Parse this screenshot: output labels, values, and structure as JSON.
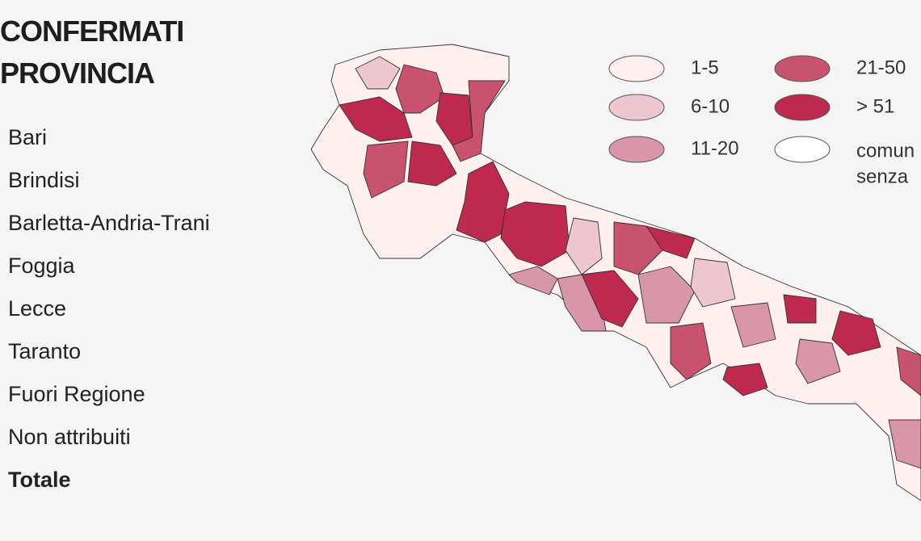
{
  "header": {
    "title_lines": [
      "CONFERMATI",
      "PROVINCIA"
    ]
  },
  "provinces": [
    "Bari",
    "Brindisi",
    "Barletta-Andria-Trani",
    "Foggia",
    "Lecce",
    "Taranto",
    "Fuori Regione",
    "Non attribuiti",
    "Totale"
  ],
  "legend": {
    "items": [
      "1-5",
      "6-10",
      "11-20",
      "21-50",
      "> 51"
    ],
    "no_cases": [
      "comun",
      "senza"
    ]
  }
}
